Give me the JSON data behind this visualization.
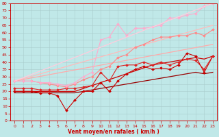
{
  "xlabel": "Vent moyen/en rafales ( km/h )",
  "xlim": [
    -0.5,
    23.5
  ],
  "ylim": [
    0,
    80
  ],
  "yticks": [
    0,
    5,
    10,
    15,
    20,
    25,
    30,
    35,
    40,
    45,
    50,
    55,
    60,
    65,
    70,
    75,
    80
  ],
  "xticks": [
    0,
    1,
    2,
    3,
    4,
    5,
    6,
    7,
    8,
    9,
    10,
    11,
    12,
    13,
    14,
    15,
    16,
    17,
    18,
    19,
    20,
    21,
    22,
    23
  ],
  "bg_color": "#c0e8e8",
  "grid_color": "#aacccc",
  "lines": [
    {
      "x": [
        0,
        1,
        2,
        3,
        4,
        5,
        6,
        7,
        8,
        9,
        10,
        11,
        12,
        13,
        14,
        15,
        16,
        17,
        18,
        19,
        20,
        21,
        22,
        23
      ],
      "y": [
        19,
        19,
        19,
        19,
        19,
        19,
        19,
        19,
        20,
        21,
        22,
        23,
        24,
        25,
        26,
        27,
        28,
        29,
        30,
        31,
        32,
        33,
        32,
        33
      ],
      "color": "#990000",
      "lw": 0.9,
      "marker": null,
      "ms": 0
    },
    {
      "x": [
        0,
        1,
        2,
        3,
        4,
        5,
        6,
        7,
        8,
        9,
        10,
        11,
        12,
        13,
        14,
        15,
        16,
        17,
        18,
        19,
        20,
        21,
        22,
        23
      ],
      "y": [
        20,
        20,
        20,
        20,
        20,
        20,
        20,
        20,
        22,
        24,
        26,
        28,
        30,
        32,
        34,
        36,
        38,
        39,
        40,
        41,
        42,
        43,
        42,
        44
      ],
      "color": "#cc0000",
      "lw": 0.9,
      "marker": null,
      "ms": 0
    },
    {
      "x": [
        0,
        1,
        2,
        3,
        4,
        5,
        6,
        7,
        8,
        9,
        10,
        11,
        12,
        13,
        14,
        15,
        16,
        17,
        18,
        19,
        20,
        21,
        22,
        23
      ],
      "y": [
        20,
        20,
        20,
        19,
        19,
        17,
        7,
        14,
        20,
        20,
        26,
        20,
        27,
        32,
        35,
        37,
        35,
        36,
        35,
        38,
        46,
        44,
        33,
        44
      ],
      "color": "#cc0000",
      "lw": 0.8,
      "marker": "D",
      "ms": 2.0
    },
    {
      "x": [
        0,
        1,
        2,
        3,
        4,
        5,
        6,
        7,
        8,
        9,
        10,
        11,
        12,
        13,
        14,
        15,
        16,
        17,
        18,
        19,
        20,
        21,
        22,
        23
      ],
      "y": [
        22,
        22,
        22,
        21,
        21,
        21,
        22,
        22,
        23,
        24,
        33,
        27,
        37,
        38,
        38,
        40,
        38,
        40,
        38,
        40,
        42,
        41,
        35,
        44
      ],
      "color": "#dd2222",
      "lw": 0.8,
      "marker": "D",
      "ms": 2.0
    },
    {
      "x": [
        0,
        23
      ],
      "y": [
        27,
        52
      ],
      "color": "#ffaaaa",
      "lw": 0.9,
      "marker": null,
      "ms": 0
    },
    {
      "x": [
        0,
        23
      ],
      "y": [
        27,
        65
      ],
      "color": "#ffbbbb",
      "lw": 0.9,
      "marker": null,
      "ms": 0
    },
    {
      "x": [
        0,
        1,
        2,
        3,
        4,
        5,
        6,
        7,
        8,
        9,
        10,
        11,
        12,
        13,
        14,
        15,
        16,
        17,
        18,
        19,
        20,
        21,
        22,
        23
      ],
      "y": [
        27,
        27,
        27,
        26,
        25,
        24,
        23,
        25,
        28,
        30,
        35,
        37,
        43,
        45,
        50,
        52,
        55,
        57,
        57,
        58,
        58,
        60,
        58,
        62
      ],
      "color": "#ff8888",
      "lw": 0.8,
      "marker": "D",
      "ms": 2.0
    },
    {
      "x": [
        0,
        1,
        2,
        3,
        4,
        5,
        6,
        7,
        8,
        9,
        10,
        11,
        12,
        13,
        14,
        15,
        16,
        17,
        18,
        19,
        20,
        21,
        22,
        23
      ],
      "y": [
        27,
        27,
        27,
        26,
        26,
        25,
        24,
        26,
        30,
        33,
        55,
        57,
        66,
        58,
        63,
        63,
        64,
        65,
        70,
        70,
        72,
        73,
        78,
        80
      ],
      "color": "#ffaacc",
      "lw": 0.8,
      "marker": "D",
      "ms": 2.0
    },
    {
      "x": [
        0,
        23
      ],
      "y": [
        27,
        80
      ],
      "color": "#ffccdd",
      "lw": 0.9,
      "marker": null,
      "ms": 0
    }
  ]
}
